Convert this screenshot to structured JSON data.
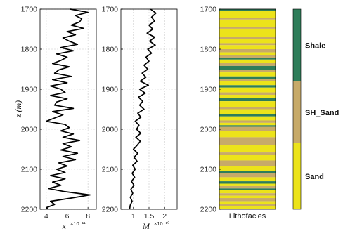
{
  "chart_data": [
    {
      "type": "line",
      "ylabel": "z (m)",
      "xlabel_symbol": "κ",
      "xlabel_multiplier": "×10⁻¹¹",
      "ylim": [
        1700,
        2200
      ],
      "xlim": [
        3.4,
        8.8
      ],
      "yticks": [
        "1700",
        "1800",
        "1900",
        "2000",
        "2100",
        "2200"
      ],
      "xticks": [
        "4",
        "6",
        "8"
      ],
      "grid": true,
      "series": [
        {
          "z": [
            1700,
            1708,
            1716,
            1724,
            1732,
            1740,
            1748,
            1756,
            1764,
            1772,
            1780,
            1788,
            1796,
            1804,
            1812,
            1820,
            1828,
            1836,
            1844,
            1852,
            1860,
            1868,
            1876,
            1884,
            1892,
            1900,
            1908,
            1916,
            1924,
            1932,
            1940,
            1948,
            1956,
            1964,
            1972,
            1980,
            1988,
            1996,
            2004,
            2012,
            2020,
            2028,
            2036,
            2044,
            2052,
            2060,
            2068,
            2076,
            2084,
            2092,
            2100,
            2108,
            2116,
            2124,
            2132,
            2140,
            2148,
            2156,
            2164,
            2172,
            2180,
            2188,
            2196,
            2200
          ],
          "values": [
            6.3,
            8.0,
            6.8,
            7.4,
            7.2,
            6.4,
            7.6,
            6.0,
            6.8,
            5.6,
            6.2,
            7.0,
            5.4,
            6.6,
            5.0,
            6.0,
            5.4,
            4.6,
            6.2,
            5.2,
            4.8,
            6.4,
            4.6,
            6.0,
            4.4,
            5.4,
            5.8,
            4.4,
            6.0,
            5.0,
            4.8,
            6.6,
            4.6,
            5.6,
            4.8,
            4.0,
            5.8,
            6.2,
            5.4,
            6.6,
            5.6,
            7.2,
            5.6,
            6.4,
            5.4,
            7.0,
            5.6,
            6.8,
            5.2,
            6.0,
            5.0,
            5.8,
            4.4,
            5.8,
            4.6,
            5.4,
            4.2,
            5.8,
            8.2,
            6.4,
            4.4,
            4.8,
            4.0,
            4.2
          ]
        }
      ]
    },
    {
      "type": "line",
      "xlabel_symbol": "M",
      "xlabel_multiplier": "×10⁻¹⁰",
      "ylim": [
        1700,
        2200
      ],
      "xlim": [
        0.6,
        2.4
      ],
      "xticks": [
        "1",
        "1.5",
        "2"
      ],
      "grid": true,
      "series": [
        {
          "z": [
            1700,
            1710,
            1720,
            1730,
            1740,
            1750,
            1760,
            1770,
            1780,
            1790,
            1800,
            1810,
            1820,
            1830,
            1840,
            1850,
            1860,
            1870,
            1880,
            1890,
            1900,
            1910,
            1920,
            1930,
            1940,
            1950,
            1960,
            1970,
            1980,
            1990,
            2000,
            2010,
            2020,
            2030,
            2040,
            2050,
            2060,
            2070,
            2080,
            2090,
            2100,
            2110,
            2120,
            2130,
            2140,
            2150,
            2160,
            2170,
            2180,
            2190,
            2200
          ],
          "values": [
            1.55,
            1.72,
            1.58,
            1.68,
            1.5,
            1.62,
            1.44,
            1.68,
            1.52,
            1.7,
            1.46,
            1.58,
            1.4,
            1.5,
            1.34,
            1.46,
            1.28,
            1.4,
            1.22,
            1.48,
            1.2,
            1.38,
            1.16,
            1.3,
            1.2,
            1.34,
            1.14,
            1.24,
            1.06,
            1.18,
            1.1,
            1.24,
            1.08,
            1.22,
            1.12,
            1.0,
            1.14,
            1.02,
            1.12,
            0.98,
            1.06,
            0.96,
            1.04,
            0.94,
            1.02,
            0.92,
            0.98,
            0.9,
            0.96,
            0.9,
            0.88
          ]
        }
      ]
    },
    {
      "type": "heatmap",
      "xlabel": "Lithofacies",
      "ylim": [
        1700,
        2200
      ],
      "yticks": [
        "1700",
        "1800",
        "1900",
        "2000",
        "2100",
        "2200"
      ],
      "facies": [
        "Shale",
        "SH_Sand",
        "Sand"
      ],
      "colors": {
        "Shale": "#2e7d5a",
        "SH_Sand": "#c7aa69",
        "Sand": "#ece31a"
      },
      "colorbar": [
        {
          "facies": "Shale",
          "from": 1700,
          "to": 1880
        },
        {
          "facies": "SH_Sand",
          "from": 1880,
          "to": 2035
        },
        {
          "facies": "Sand",
          "from": 2035,
          "to": 2200
        }
      ],
      "layers": [
        {
          "from": 1700,
          "to": 1705,
          "facies": "Shale"
        },
        {
          "from": 1705,
          "to": 1722,
          "facies": "Sand"
        },
        {
          "from": 1722,
          "to": 1726,
          "facies": "SH_Sand"
        },
        {
          "from": 1726,
          "to": 1745,
          "facies": "Sand"
        },
        {
          "from": 1745,
          "to": 1749,
          "facies": "SH_Sand"
        },
        {
          "from": 1749,
          "to": 1770,
          "facies": "Sand"
        },
        {
          "from": 1770,
          "to": 1774,
          "facies": "SH_Sand"
        },
        {
          "from": 1774,
          "to": 1785,
          "facies": "Sand"
        },
        {
          "from": 1785,
          "to": 1790,
          "facies": "SH_Sand"
        },
        {
          "from": 1790,
          "to": 1800,
          "facies": "Sand"
        },
        {
          "from": 1800,
          "to": 1808,
          "facies": "SH_Sand"
        },
        {
          "from": 1808,
          "to": 1815,
          "facies": "Sand"
        },
        {
          "from": 1815,
          "to": 1822,
          "facies": "SH_Sand"
        },
        {
          "from": 1822,
          "to": 1826,
          "facies": "Shale"
        },
        {
          "from": 1826,
          "to": 1834,
          "facies": "Sand"
        },
        {
          "from": 1834,
          "to": 1842,
          "facies": "SH_Sand"
        },
        {
          "from": 1842,
          "to": 1852,
          "facies": "Shale"
        },
        {
          "from": 1852,
          "to": 1858,
          "facies": "SH_Sand"
        },
        {
          "from": 1858,
          "to": 1868,
          "facies": "Sand"
        },
        {
          "from": 1868,
          "to": 1874,
          "facies": "Shale"
        },
        {
          "from": 1874,
          "to": 1880,
          "facies": "SH_Sand"
        },
        {
          "from": 1880,
          "to": 1890,
          "facies": "Sand"
        },
        {
          "from": 1890,
          "to": 1896,
          "facies": "Shale"
        },
        {
          "from": 1896,
          "to": 1908,
          "facies": "Sand"
        },
        {
          "from": 1908,
          "to": 1914,
          "facies": "SH_Sand"
        },
        {
          "from": 1914,
          "to": 1922,
          "facies": "Sand"
        },
        {
          "from": 1922,
          "to": 1930,
          "facies": "Shale"
        },
        {
          "from": 1930,
          "to": 1944,
          "facies": "Sand"
        },
        {
          "from": 1944,
          "to": 1950,
          "facies": "SH_Sand"
        },
        {
          "from": 1950,
          "to": 1962,
          "facies": "Sand"
        },
        {
          "from": 1962,
          "to": 1968,
          "facies": "Shale"
        },
        {
          "from": 1968,
          "to": 1978,
          "facies": "Sand"
        },
        {
          "from": 1978,
          "to": 1984,
          "facies": "SH_Sand"
        },
        {
          "from": 1984,
          "to": 1990,
          "facies": "Sand"
        },
        {
          "from": 1990,
          "to": 1994,
          "facies": "Shale"
        },
        {
          "from": 1994,
          "to": 2004,
          "facies": "SH_Sand"
        },
        {
          "from": 2004,
          "to": 2020,
          "facies": "Sand"
        },
        {
          "from": 2020,
          "to": 2040,
          "facies": "SH_Sand"
        },
        {
          "from": 2040,
          "to": 2058,
          "facies": "Sand"
        },
        {
          "from": 2058,
          "to": 2064,
          "facies": "SH_Sand"
        },
        {
          "from": 2064,
          "to": 2078,
          "facies": "Sand"
        },
        {
          "from": 2078,
          "to": 2092,
          "facies": "SH_Sand"
        },
        {
          "from": 2092,
          "to": 2104,
          "facies": "Sand"
        },
        {
          "from": 2104,
          "to": 2110,
          "facies": "Shale"
        },
        {
          "from": 2110,
          "to": 2120,
          "facies": "SH_Sand"
        },
        {
          "from": 2120,
          "to": 2130,
          "facies": "Sand"
        },
        {
          "from": 2130,
          "to": 2136,
          "facies": "Shale"
        },
        {
          "from": 2136,
          "to": 2142,
          "facies": "Sand"
        },
        {
          "from": 2142,
          "to": 2148,
          "facies": "SH_Sand"
        },
        {
          "from": 2148,
          "to": 2152,
          "facies": "Shale"
        },
        {
          "from": 2152,
          "to": 2160,
          "facies": "Sand"
        },
        {
          "from": 2160,
          "to": 2166,
          "facies": "SH_Sand"
        },
        {
          "from": 2166,
          "to": 2172,
          "facies": "Sand"
        },
        {
          "from": 2172,
          "to": 2180,
          "facies": "SH_Sand"
        },
        {
          "from": 2180,
          "to": 2186,
          "facies": "Sand"
        },
        {
          "from": 2186,
          "to": 2192,
          "facies": "SH_Sand"
        },
        {
          "from": 2192,
          "to": 2200,
          "facies": "Sand"
        }
      ]
    }
  ]
}
